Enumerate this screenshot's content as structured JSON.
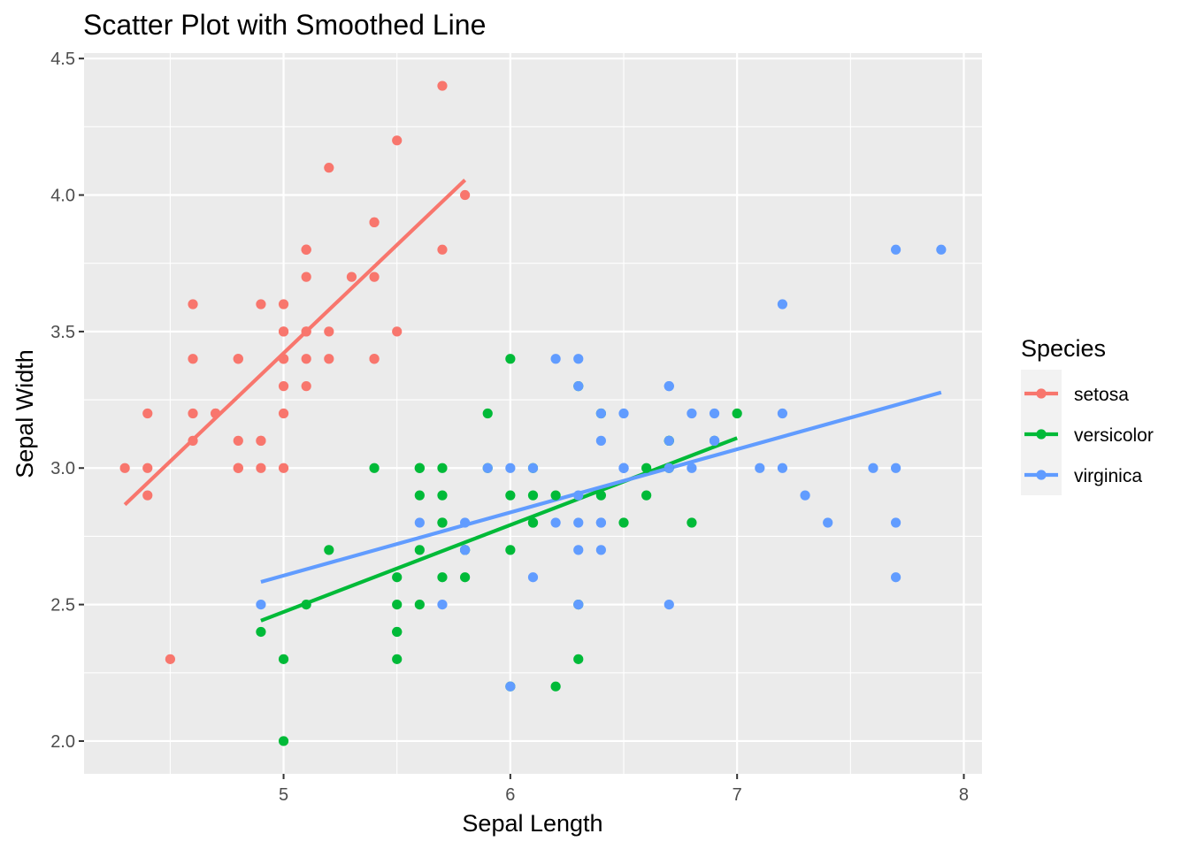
{
  "chart_data": {
    "type": "scatter",
    "title": "Scatter Plot with Smoothed Line",
    "xlabel": "Sepal Length",
    "ylabel": "Sepal Width",
    "xlim": [
      4.12,
      8.08
    ],
    "ylim": [
      1.88,
      4.52
    ],
    "x_ticks": [
      5,
      6,
      7,
      8
    ],
    "x_tick_labels": [
      "5",
      "6",
      "7",
      "8"
    ],
    "y_ticks": [
      2.0,
      2.5,
      3.0,
      3.5,
      4.0,
      4.5
    ],
    "y_tick_labels": [
      "2.0",
      "2.5",
      "3.0",
      "3.5",
      "4.0",
      "4.5"
    ],
    "grid": true,
    "legend": {
      "title": "Species",
      "position": "right"
    },
    "series": [
      {
        "name": "setosa",
        "color": "#F8766D",
        "points": [
          [
            5.1,
            3.5
          ],
          [
            4.9,
            3.0
          ],
          [
            4.7,
            3.2
          ],
          [
            4.6,
            3.1
          ],
          [
            5.0,
            3.6
          ],
          [
            5.4,
            3.9
          ],
          [
            4.6,
            3.4
          ],
          [
            5.0,
            3.4
          ],
          [
            4.4,
            2.9
          ],
          [
            4.9,
            3.1
          ],
          [
            5.4,
            3.7
          ],
          [
            4.8,
            3.4
          ],
          [
            4.8,
            3.0
          ],
          [
            4.3,
            3.0
          ],
          [
            5.8,
            4.0
          ],
          [
            5.7,
            4.4
          ],
          [
            5.4,
            3.9
          ],
          [
            5.1,
            3.5
          ],
          [
            5.7,
            3.8
          ],
          [
            5.1,
            3.8
          ],
          [
            5.4,
            3.4
          ],
          [
            5.1,
            3.7
          ],
          [
            4.6,
            3.6
          ],
          [
            5.1,
            3.3
          ],
          [
            4.8,
            3.4
          ],
          [
            5.0,
            3.0
          ],
          [
            5.0,
            3.4
          ],
          [
            5.2,
            3.5
          ],
          [
            5.2,
            3.4
          ],
          [
            4.7,
            3.2
          ],
          [
            4.8,
            3.1
          ],
          [
            5.4,
            3.4
          ],
          [
            5.2,
            4.1
          ],
          [
            5.5,
            4.2
          ],
          [
            4.9,
            3.1
          ],
          [
            5.0,
            3.2
          ],
          [
            5.5,
            3.5
          ],
          [
            4.9,
            3.6
          ],
          [
            4.4,
            3.0
          ],
          [
            5.1,
            3.4
          ],
          [
            5.0,
            3.5
          ],
          [
            4.5,
            2.3
          ],
          [
            4.4,
            3.2
          ],
          [
            5.0,
            3.5
          ],
          [
            5.1,
            3.8
          ],
          [
            4.8,
            3.0
          ],
          [
            5.1,
            3.8
          ],
          [
            4.6,
            3.2
          ],
          [
            5.3,
            3.7
          ],
          [
            5.0,
            3.3
          ]
        ],
        "smooth_line": [
          [
            4.3,
            2.866
          ],
          [
            5.8,
            4.055
          ]
        ]
      },
      {
        "name": "versicolor",
        "color": "#00BA38",
        "points": [
          [
            7.0,
            3.2
          ],
          [
            6.4,
            3.2
          ],
          [
            6.9,
            3.1
          ],
          [
            5.5,
            2.3
          ],
          [
            6.5,
            2.8
          ],
          [
            5.7,
            2.8
          ],
          [
            6.3,
            3.3
          ],
          [
            4.9,
            2.4
          ],
          [
            6.6,
            2.9
          ],
          [
            5.2,
            2.7
          ],
          [
            5.0,
            2.0
          ],
          [
            5.9,
            3.0
          ],
          [
            6.0,
            2.2
          ],
          [
            6.1,
            2.9
          ],
          [
            5.6,
            2.9
          ],
          [
            6.7,
            3.1
          ],
          [
            5.6,
            3.0
          ],
          [
            5.8,
            2.7
          ],
          [
            6.2,
            2.2
          ],
          [
            5.6,
            2.5
          ],
          [
            5.9,
            3.2
          ],
          [
            6.1,
            2.8
          ],
          [
            6.3,
            2.5
          ],
          [
            6.1,
            2.8
          ],
          [
            6.4,
            2.9
          ],
          [
            6.6,
            3.0
          ],
          [
            6.8,
            2.8
          ],
          [
            6.7,
            3.0
          ],
          [
            6.0,
            2.9
          ],
          [
            5.7,
            2.6
          ],
          [
            5.5,
            2.4
          ],
          [
            5.5,
            2.4
          ],
          [
            5.8,
            2.7
          ],
          [
            6.0,
            2.7
          ],
          [
            5.4,
            3.0
          ],
          [
            6.0,
            3.4
          ],
          [
            6.7,
            3.1
          ],
          [
            6.3,
            2.3
          ],
          [
            5.6,
            3.0
          ],
          [
            5.5,
            2.5
          ],
          [
            5.5,
            2.6
          ],
          [
            6.1,
            3.0
          ],
          [
            5.8,
            2.6
          ],
          [
            5.0,
            2.3
          ],
          [
            5.6,
            2.7
          ],
          [
            5.7,
            3.0
          ],
          [
            5.7,
            2.9
          ],
          [
            6.2,
            2.9
          ],
          [
            5.1,
            2.5
          ],
          [
            5.7,
            2.8
          ]
        ],
        "smooth_line": [
          [
            4.9,
            2.441
          ],
          [
            7.0,
            3.11
          ]
        ]
      },
      {
        "name": "virginica",
        "color": "#619CFF",
        "points": [
          [
            6.3,
            3.3
          ],
          [
            5.8,
            2.7
          ],
          [
            7.1,
            3.0
          ],
          [
            6.3,
            2.9
          ],
          [
            6.5,
            3.0
          ],
          [
            7.6,
            3.0
          ],
          [
            4.9,
            2.5
          ],
          [
            7.3,
            2.9
          ],
          [
            6.7,
            2.5
          ],
          [
            7.2,
            3.6
          ],
          [
            6.5,
            3.2
          ],
          [
            6.4,
            2.7
          ],
          [
            6.8,
            3.0
          ],
          [
            5.7,
            2.5
          ],
          [
            5.8,
            2.8
          ],
          [
            6.4,
            3.2
          ],
          [
            6.5,
            3.0
          ],
          [
            7.7,
            3.8
          ],
          [
            7.7,
            2.6
          ],
          [
            6.0,
            2.2
          ],
          [
            6.9,
            3.2
          ],
          [
            5.6,
            2.8
          ],
          [
            7.7,
            2.8
          ],
          [
            6.3,
            2.7
          ],
          [
            6.7,
            3.3
          ],
          [
            7.2,
            3.2
          ],
          [
            6.2,
            2.8
          ],
          [
            6.1,
            3.0
          ],
          [
            6.4,
            2.8
          ],
          [
            7.2,
            3.0
          ],
          [
            7.4,
            2.8
          ],
          [
            7.9,
            3.8
          ],
          [
            6.4,
            2.8
          ],
          [
            6.3,
            2.8
          ],
          [
            6.1,
            2.6
          ],
          [
            7.7,
            3.0
          ],
          [
            6.3,
            3.4
          ],
          [
            6.4,
            3.1
          ],
          [
            6.0,
            3.0
          ],
          [
            6.9,
            3.1
          ],
          [
            6.7,
            3.1
          ],
          [
            6.9,
            3.1
          ],
          [
            5.8,
            2.7
          ],
          [
            6.8,
            3.2
          ],
          [
            6.7,
            3.3
          ],
          [
            6.7,
            3.0
          ],
          [
            6.3,
            2.5
          ],
          [
            6.5,
            3.0
          ],
          [
            6.2,
            3.4
          ],
          [
            5.9,
            3.0
          ]
        ],
        "smooth_line": [
          [
            4.9,
            2.583
          ],
          [
            7.9,
            3.277
          ]
        ]
      }
    ]
  }
}
